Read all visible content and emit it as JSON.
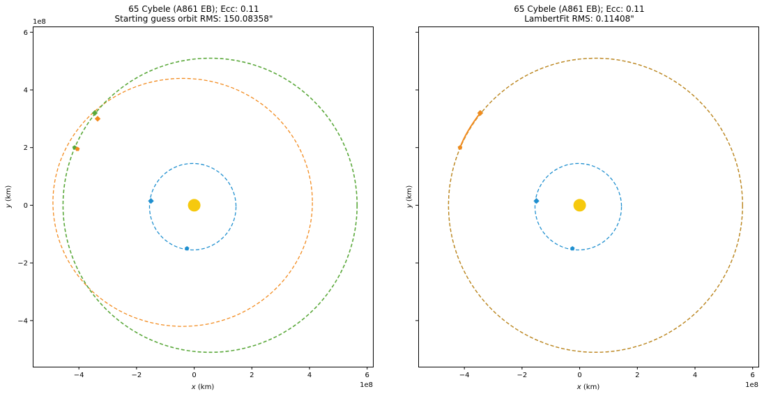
{
  "chart_data": [
    {
      "type": "scatter",
      "title": "65 Cybele (A861 EB); Ecc: 0.11",
      "subtitle": "Starting guess orbit RMS: 150.08358\"",
      "xlabel_italic": "x",
      "xlabel_unit": " (km)",
      "ylabel_italic": "y",
      "ylabel_unit": " (km)",
      "x_offset_text": "1e8",
      "y_offset_text": "1e8",
      "xlim": [
        -5.6,
        6.2
      ],
      "ylim": [
        -5.6,
        6.2
      ],
      "xticks": [
        -4,
        -2,
        0,
        2,
        4,
        6
      ],
      "yticks": [
        -4,
        -2,
        0,
        2,
        4,
        6
      ],
      "xtick_labels": [
        "−4",
        "−2",
        "0",
        "2",
        "4",
        "6"
      ],
      "ytick_labels": [
        "−4",
        "−2",
        "0",
        "2",
        "4",
        "6"
      ],
      "show_ytick_labels": true,
      "grid": false,
      "sun": {
        "x": 0,
        "y": 0,
        "color": "#f6c90e"
      },
      "orbits": [
        {
          "color": "#1f8fcf",
          "center": [
            -0.05,
            -0.05
          ],
          "rx": 1.5,
          "ry": 1.5,
          "lw": 1.3
        },
        {
          "color": "#f28a1d",
          "center": [
            -0.4,
            0.1
          ],
          "rx": 4.5,
          "ry": 4.3,
          "lw": 1.3
        },
        {
          "color": "#5aa83a",
          "center": [
            0.55,
            0.0
          ],
          "rx": 5.1,
          "ry": 5.1,
          "lw": 1.6
        }
      ],
      "markers": [
        {
          "color": "#1f8fcf",
          "shape": "diamond",
          "x": -1.5,
          "y": 0.15
        },
        {
          "color": "#1f8fcf",
          "shape": "pentagon",
          "x": -0.25,
          "y": -1.5
        },
        {
          "color": "#5aa83a",
          "shape": "diamond",
          "x": -3.45,
          "y": 3.2
        },
        {
          "color": "#5aa83a",
          "shape": "pentagon",
          "x": -4.15,
          "y": 2.0
        },
        {
          "color": "#f28a1d",
          "shape": "diamond",
          "x": -3.35,
          "y": 3.0
        },
        {
          "color": "#f28a1d",
          "shape": "pentagon",
          "x": -4.05,
          "y": 1.95
        }
      ],
      "arcs": []
    },
    {
      "type": "scatter",
      "title": "65 Cybele (A861 EB); Ecc: 0.11",
      "subtitle": "LambertFit RMS: 0.11408\"",
      "xlabel_italic": "x",
      "xlabel_unit": " (km)",
      "ylabel_italic": "y",
      "ylabel_unit": " (km)",
      "x_offset_text": "1e8",
      "y_offset_text": "",
      "xlim": [
        -5.6,
        6.2
      ],
      "ylim": [
        -5.6,
        6.2
      ],
      "xticks": [
        -4,
        -2,
        0,
        2,
        4,
        6
      ],
      "yticks": [
        -4,
        -2,
        0,
        2,
        4,
        6
      ],
      "xtick_labels": [
        "−4",
        "−2",
        "0",
        "2",
        "4",
        "6"
      ],
      "ytick_labels": [],
      "show_ytick_labels": false,
      "grid": false,
      "sun": {
        "x": 0,
        "y": 0,
        "color": "#f6c90e"
      },
      "orbits": [
        {
          "color": "#1f8fcf",
          "center": [
            -0.05,
            -0.05
          ],
          "rx": 1.5,
          "ry": 1.5,
          "lw": 1.3
        },
        {
          "color": "#5aa83a",
          "center": [
            0.55,
            0.0
          ],
          "rx": 5.1,
          "ry": 5.1,
          "lw": 1.3
        },
        {
          "color": "#c8821e",
          "center": [
            0.55,
            0.0
          ],
          "rx": 5.1,
          "ry": 5.1,
          "lw": 1.3
        }
      ],
      "markers": [
        {
          "color": "#1f8fcf",
          "shape": "diamond",
          "x": -1.5,
          "y": 0.15
        },
        {
          "color": "#1f8fcf",
          "shape": "pentagon",
          "x": -0.25,
          "y": -1.5
        },
        {
          "color": "#5aa83a",
          "shape": "pentagon",
          "x": -4.15,
          "y": 2.0
        },
        {
          "color": "#f28a1d",
          "shape": "pentagon",
          "x": -4.15,
          "y": 2.0
        },
        {
          "color": "#5aa83a",
          "shape": "diamond",
          "x": -3.45,
          "y": 3.2
        },
        {
          "color": "#f28a1d",
          "shape": "diamond",
          "x": -3.45,
          "y": 3.2
        }
      ],
      "arcs": [
        {
          "color": "#f28a1d",
          "from": [
            -4.15,
            2.0
          ],
          "to": [
            -3.45,
            3.2
          ]
        }
      ]
    }
  ]
}
